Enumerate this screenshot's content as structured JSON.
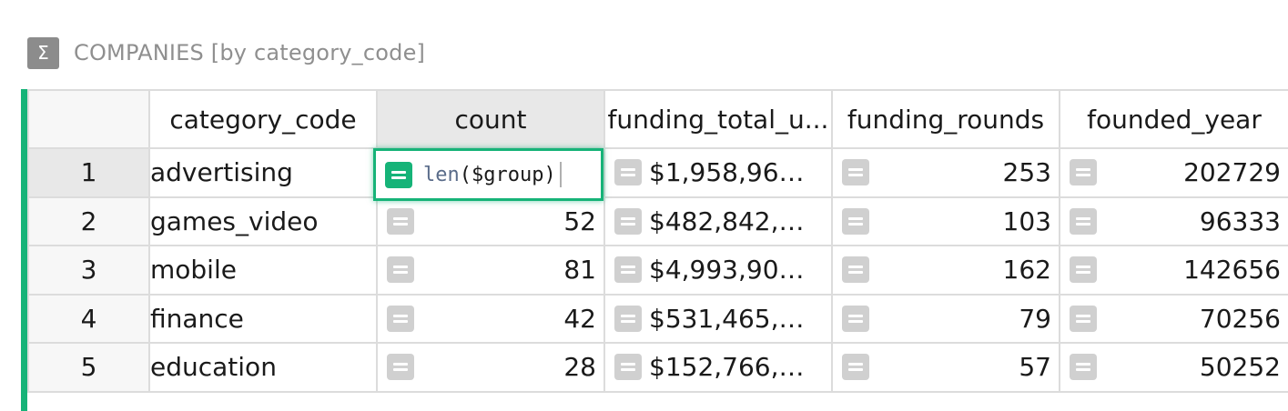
{
  "section": {
    "title": "COMPANIES [by category_code]",
    "icon": "sigma-icon",
    "icon_glyph": "Σ"
  },
  "columns": [
    {
      "label": "category_code"
    },
    {
      "label": "count"
    },
    {
      "label": "funding_total_u..."
    },
    {
      "label": "funding_rounds"
    },
    {
      "label": "founded_year"
    }
  ],
  "rows": [
    {
      "num": "1",
      "category_code": "advertising",
      "count": "",
      "funding_total": "$1,958,96…",
      "funding_rounds": "253",
      "founded_year": "202729"
    },
    {
      "num": "2",
      "category_code": "games_video",
      "count": "52",
      "funding_total": "$482,842,…",
      "funding_rounds": "103",
      "founded_year": "96333"
    },
    {
      "num": "3",
      "category_code": "mobile",
      "count": "81",
      "funding_total": "$4,993,90…",
      "funding_rounds": "162",
      "founded_year": "142656"
    },
    {
      "num": "4",
      "category_code": "finance",
      "count": "42",
      "funding_total": "$531,465,…",
      "funding_rounds": "79",
      "founded_year": "70256"
    },
    {
      "num": "5",
      "category_code": "education",
      "count": "28",
      "funding_total": "$152,766,…",
      "funding_rounds": "57",
      "founded_year": "50252"
    }
  ],
  "editor": {
    "formula_fn": "len",
    "formula_rest": "($group)"
  },
  "colors": {
    "accent": "#16b378",
    "icon_gray": "#d0d0d0",
    "header_text": "#8f8f8f"
  }
}
